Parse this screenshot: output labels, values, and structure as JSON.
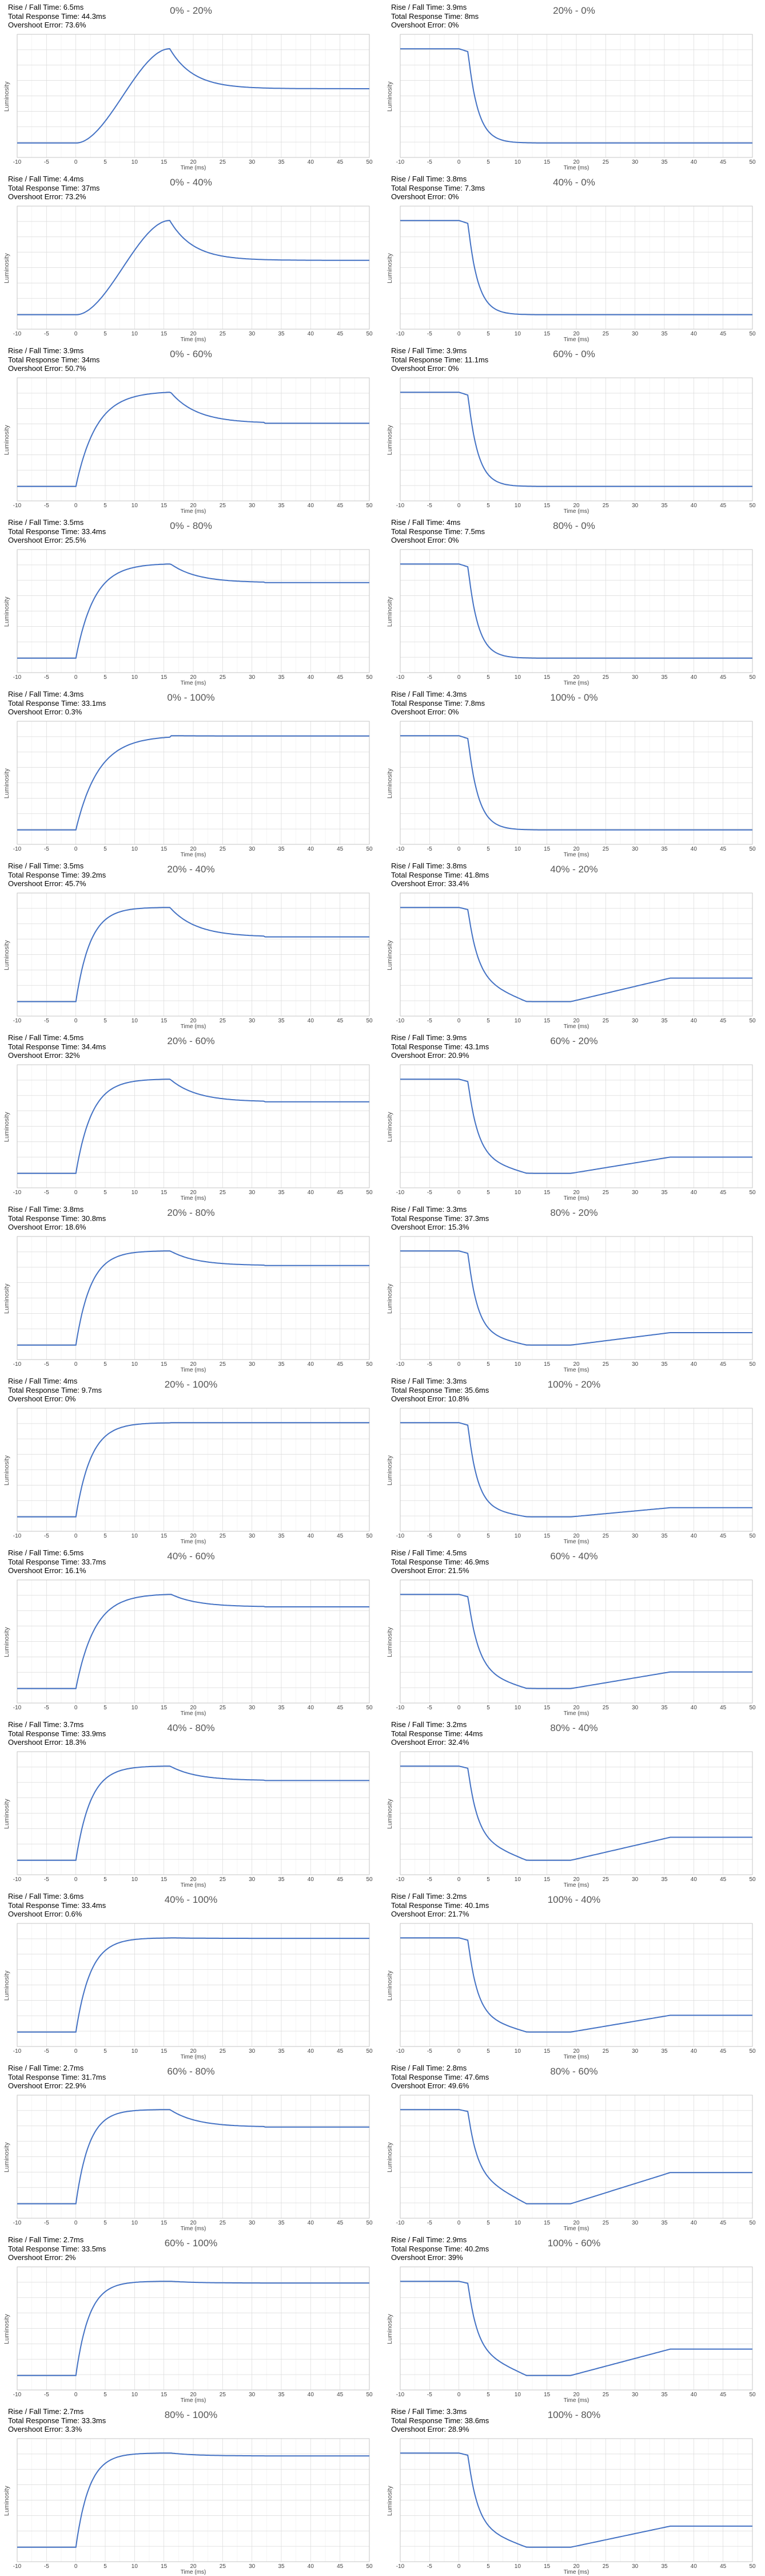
{
  "axis": {
    "xlabel": "Time (ms)",
    "ylabel": "Luminosity",
    "xticks": [
      "-10",
      "-5",
      "0",
      "5",
      "10",
      "15",
      "20",
      "25",
      "30",
      "35",
      "40",
      "45",
      "50"
    ]
  },
  "labels": {
    "rt": "Rise / Fall Time: ",
    "trt": "Total Response Time: ",
    "oe": "Overshoot Error: "
  },
  "colors": {
    "line": "#4472C4",
    "grid": "#D9D9D9",
    "axis": "#BFBFBF"
  },
  "chart_data": [
    {
      "type": "line",
      "title": "0% - 20%",
      "rise_fall_time": "6.5ms",
      "total_response_time": "44.3ms",
      "overshoot_error": "73.6%",
      "xlabel": "Time (ms)",
      "ylabel": "Luminosity",
      "xlim": [
        -10,
        50
      ],
      "grid": true
    },
    {
      "type": "line",
      "title": "20% - 0%",
      "rise_fall_time": "3.9ms",
      "total_response_time": "8ms",
      "overshoot_error": "0%",
      "xlabel": "Time (ms)",
      "ylabel": "Luminosity",
      "xlim": [
        -10,
        50
      ],
      "grid": true
    },
    {
      "type": "line",
      "title": "0% - 40%",
      "rise_fall_time": "4.4ms",
      "total_response_time": "37ms",
      "overshoot_error": "73.2%",
      "xlabel": "Time (ms)",
      "ylabel": "Luminosity",
      "xlim": [
        -10,
        50
      ],
      "grid": true
    },
    {
      "type": "line",
      "title": "40% - 0%",
      "rise_fall_time": "3.8ms",
      "total_response_time": "7.3ms",
      "overshoot_error": "0%",
      "xlabel": "Time (ms)",
      "ylabel": "Luminosity",
      "xlim": [
        -10,
        50
      ],
      "grid": true
    },
    {
      "type": "line",
      "title": "0% - 60%",
      "rise_fall_time": "3.9ms",
      "total_response_time": "34ms",
      "overshoot_error": "50.7%",
      "xlabel": "Time (ms)",
      "ylabel": "Luminosity",
      "xlim": [
        -10,
        50
      ],
      "grid": true
    },
    {
      "type": "line",
      "title": "60% - 0%",
      "rise_fall_time": "3.9ms",
      "total_response_time": "11.1ms",
      "overshoot_error": "0%",
      "xlabel": "Time (ms)",
      "ylabel": "Luminosity",
      "xlim": [
        -10,
        50
      ],
      "grid": true
    },
    {
      "type": "line",
      "title": "0% - 80%",
      "rise_fall_time": "3.5ms",
      "total_response_time": "33.4ms",
      "overshoot_error": "25.5%",
      "xlabel": "Time (ms)",
      "ylabel": "Luminosity",
      "xlim": [
        -10,
        50
      ],
      "grid": true
    },
    {
      "type": "line",
      "title": "80% - 0%",
      "rise_fall_time": "4ms",
      "total_response_time": "7.5ms",
      "overshoot_error": "0%",
      "xlabel": "Time (ms)",
      "ylabel": "Luminosity",
      "xlim": [
        -10,
        50
      ],
      "grid": true
    },
    {
      "type": "line",
      "title": "0% - 100%",
      "rise_fall_time": "4.3ms",
      "total_response_time": "33.1ms",
      "overshoot_error": "0.3%",
      "xlabel": "Time (ms)",
      "ylabel": "Luminosity",
      "xlim": [
        -10,
        50
      ],
      "grid": true
    },
    {
      "type": "line",
      "title": "100% - 0%",
      "rise_fall_time": "4.3ms",
      "total_response_time": "7.8ms",
      "overshoot_error": "0%",
      "xlabel": "Time (ms)",
      "ylabel": "Luminosity",
      "xlim": [
        -10,
        50
      ],
      "grid": true
    },
    {
      "type": "line",
      "title": "20% - 40%",
      "rise_fall_time": "3.5ms",
      "total_response_time": "39.2ms",
      "overshoot_error": "45.7%",
      "xlabel": "Time (ms)",
      "ylabel": "Luminosity",
      "xlim": [
        -10,
        50
      ],
      "grid": true
    },
    {
      "type": "line",
      "title": "40% - 20%",
      "rise_fall_time": "3.8ms",
      "total_response_time": "41.8ms",
      "overshoot_error": "33.4%",
      "xlabel": "Time (ms)",
      "ylabel": "Luminosity",
      "xlim": [
        -10,
        50
      ],
      "grid": true
    },
    {
      "type": "line",
      "title": "20% - 60%",
      "rise_fall_time": "4.5ms",
      "total_response_time": "34.4ms",
      "overshoot_error": "32%",
      "xlabel": "Time (ms)",
      "ylabel": "Luminosity",
      "xlim": [
        -10,
        50
      ],
      "grid": true
    },
    {
      "type": "line",
      "title": "60% - 20%",
      "rise_fall_time": "3.9ms",
      "total_response_time": "43.1ms",
      "overshoot_error": "20.9%",
      "xlabel": "Time (ms)",
      "ylabel": "Luminosity",
      "xlim": [
        -10,
        50
      ],
      "grid": true
    },
    {
      "type": "line",
      "title": "20% - 80%",
      "rise_fall_time": "3.8ms",
      "total_response_time": "30.8ms",
      "overshoot_error": "18.6%",
      "xlabel": "Time (ms)",
      "ylabel": "Luminosity",
      "xlim": [
        -10,
        50
      ],
      "grid": true
    },
    {
      "type": "line",
      "title": "80% - 20%",
      "rise_fall_time": "3.3ms",
      "total_response_time": "37.3ms",
      "overshoot_error": "15.3%",
      "xlabel": "Time (ms)",
      "ylabel": "Luminosity",
      "xlim": [
        -10,
        50
      ],
      "grid": true
    },
    {
      "type": "line",
      "title": "20% - 100%",
      "rise_fall_time": "4ms",
      "total_response_time": "9.7ms",
      "overshoot_error": "0%",
      "xlabel": "Time (ms)",
      "ylabel": "Luminosity",
      "xlim": [
        -10,
        50
      ],
      "grid": true
    },
    {
      "type": "line",
      "title": "100% - 20%",
      "rise_fall_time": "3.3ms",
      "total_response_time": "35.6ms",
      "overshoot_error": "10.8%",
      "xlabel": "Time (ms)",
      "ylabel": "Luminosity",
      "xlim": [
        -10,
        50
      ],
      "grid": true
    },
    {
      "type": "line",
      "title": "40% - 60%",
      "rise_fall_time": "6.5ms",
      "total_response_time": "33.7ms",
      "overshoot_error": "16.1%",
      "xlabel": "Time (ms)",
      "ylabel": "Luminosity",
      "xlim": [
        -10,
        50
      ],
      "grid": true
    },
    {
      "type": "line",
      "title": "60% - 40%",
      "rise_fall_time": "4.5ms",
      "total_response_time": "46.9ms",
      "overshoot_error": "21.5%",
      "xlabel": "Time (ms)",
      "ylabel": "Luminosity",
      "xlim": [
        -10,
        50
      ],
      "grid": true
    },
    {
      "type": "line",
      "title": "40% - 80%",
      "rise_fall_time": "3.7ms",
      "total_response_time": "33.9ms",
      "overshoot_error": "18.3%",
      "xlabel": "Time (ms)",
      "ylabel": "Luminosity",
      "xlim": [
        -10,
        50
      ],
      "grid": true
    },
    {
      "type": "line",
      "title": "80% - 40%",
      "rise_fall_time": "3.2ms",
      "total_response_time": "44ms",
      "overshoot_error": "32.4%",
      "xlabel": "Time (ms)",
      "ylabel": "Luminosity",
      "xlim": [
        -10,
        50
      ],
      "grid": true
    },
    {
      "type": "line",
      "title": "40% - 100%",
      "rise_fall_time": "3.6ms",
      "total_response_time": "33.4ms",
      "overshoot_error": "0.6%",
      "xlabel": "Time (ms)",
      "ylabel": "Luminosity",
      "xlim": [
        -10,
        50
      ],
      "grid": true
    },
    {
      "type": "line",
      "title": "100% - 40%",
      "rise_fall_time": "3.2ms",
      "total_response_time": "40.1ms",
      "overshoot_error": "21.7%",
      "xlabel": "Time (ms)",
      "ylabel": "Luminosity",
      "xlim": [
        -10,
        50
      ],
      "grid": true
    },
    {
      "type": "line",
      "title": "60% - 80%",
      "rise_fall_time": "2.7ms",
      "total_response_time": "31.7ms",
      "overshoot_error": "22.9%",
      "xlabel": "Time (ms)",
      "ylabel": "Luminosity",
      "xlim": [
        -10,
        50
      ],
      "grid": true
    },
    {
      "type": "line",
      "title": "80% - 60%",
      "rise_fall_time": "2.8ms",
      "total_response_time": "47.6ms",
      "overshoot_error": "49.6%",
      "xlabel": "Time (ms)",
      "ylabel": "Luminosity",
      "xlim": [
        -10,
        50
      ],
      "grid": true
    },
    {
      "type": "line",
      "title": "60% - 100%",
      "rise_fall_time": "2.7ms",
      "total_response_time": "33.5ms",
      "overshoot_error": "2%",
      "xlabel": "Time (ms)",
      "ylabel": "Luminosity",
      "xlim": [
        -10,
        50
      ],
      "grid": true
    },
    {
      "type": "line",
      "title": "100% - 60%",
      "rise_fall_time": "2.9ms",
      "total_response_time": "40.2ms",
      "overshoot_error": "39%",
      "xlabel": "Time (ms)",
      "ylabel": "Luminosity",
      "xlim": [
        -10,
        50
      ],
      "grid": true
    },
    {
      "type": "line",
      "title": "80% - 100%",
      "rise_fall_time": "2.7ms",
      "total_response_time": "33.3ms",
      "overshoot_error": "3.3%",
      "xlabel": "Time (ms)",
      "ylabel": "Luminosity",
      "xlim": [
        -10,
        50
      ],
      "grid": true
    },
    {
      "type": "line",
      "title": "100% - 80%",
      "rise_fall_time": "3.3ms",
      "total_response_time": "38.6ms",
      "overshoot_error": "28.9%",
      "xlabel": "Time (ms)",
      "ylabel": "Luminosity",
      "xlim": [
        -10,
        50
      ],
      "grid": true
    }
  ]
}
